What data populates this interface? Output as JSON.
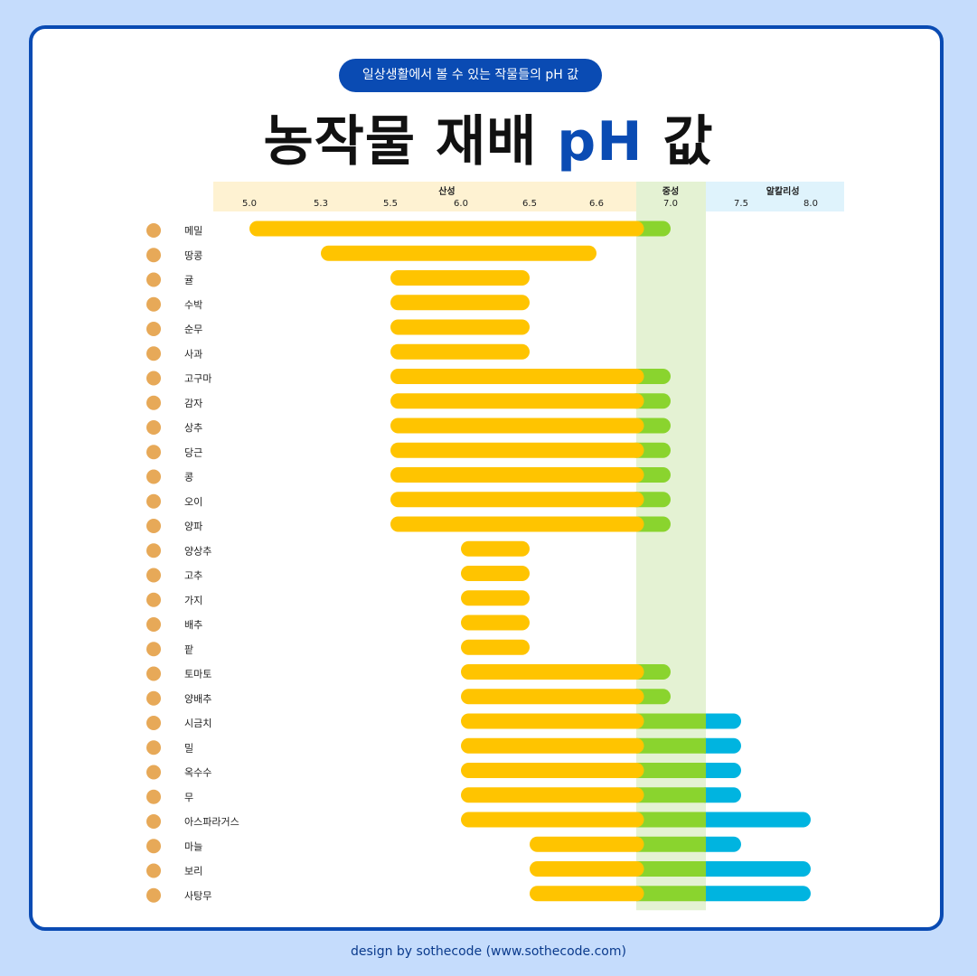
{
  "header": {
    "subtitle_pill": "일상생활에서 볼 수 있는 작물들의 pH 값",
    "title_main": "농작물 재배",
    "title_ph": "pH",
    "title_end": "값"
  },
  "footer": {
    "credit": "design by sothecode (www.sothecode.com)"
  },
  "colors": {
    "acid": "#ffc400",
    "neutral": "#8ad42e",
    "alkaline": "#00b4e0",
    "neutral_band": "#e4f2d3",
    "acid_band": "#fef2d2",
    "alkaline_band": "#dff3fc",
    "accent": "#0a4bb3"
  },
  "chart_data": {
    "type": "bar",
    "orientation": "horizontal-range",
    "zones": [
      {
        "name": "산성",
        "label_x": 5.9
      },
      {
        "name": "중성",
        "label_x": 7.0
      },
      {
        "name": "알칼리성",
        "label_x": 7.8
      }
    ],
    "ticks": [
      "5.0",
      "5.3",
      "5.5",
      "6.0",
      "6.5",
      "6.6",
      "7.0",
      "7.5",
      "8.0"
    ],
    "crops": [
      {
        "name": "메밀",
        "icon": "buckwheat-icon",
        "min": 5.0,
        "max": 7.0
      },
      {
        "name": "땅콩",
        "icon": "peanut-icon",
        "min": 5.3,
        "max": 6.6
      },
      {
        "name": "귤",
        "icon": "tangerine-icon",
        "min": 5.5,
        "max": 6.5
      },
      {
        "name": "수박",
        "icon": "watermelon-icon",
        "min": 5.5,
        "max": 6.5
      },
      {
        "name": "순무",
        "icon": "turnip-icon",
        "min": 5.5,
        "max": 6.5
      },
      {
        "name": "사과",
        "icon": "apple-icon",
        "min": 5.5,
        "max": 6.5
      },
      {
        "name": "고구마",
        "icon": "sweet-potato-icon",
        "min": 5.5,
        "max": 7.0
      },
      {
        "name": "감자",
        "icon": "potato-icon",
        "min": 5.5,
        "max": 7.0
      },
      {
        "name": "상추",
        "icon": "lettuce-icon",
        "min": 5.5,
        "max": 7.0
      },
      {
        "name": "당근",
        "icon": "carrot-icon",
        "min": 5.5,
        "max": 7.0
      },
      {
        "name": "콩",
        "icon": "bean-icon",
        "min": 5.5,
        "max": 7.0
      },
      {
        "name": "오이",
        "icon": "cucumber-icon",
        "min": 5.5,
        "max": 7.0
      },
      {
        "name": "양파",
        "icon": "onion-icon",
        "min": 5.5,
        "max": 7.0
      },
      {
        "name": "양상추",
        "icon": "iceberg-lettuce-icon",
        "min": 6.0,
        "max": 6.5
      },
      {
        "name": "고추",
        "icon": "chili-icon",
        "min": 6.0,
        "max": 6.5
      },
      {
        "name": "가지",
        "icon": "eggplant-icon",
        "min": 6.0,
        "max": 6.5
      },
      {
        "name": "배추",
        "icon": "napa-cabbage-icon",
        "min": 6.0,
        "max": 6.5
      },
      {
        "name": "팥",
        "icon": "red-bean-icon",
        "min": 6.0,
        "max": 6.5
      },
      {
        "name": "토마토",
        "icon": "tomato-icon",
        "min": 6.0,
        "max": 7.0
      },
      {
        "name": "양배추",
        "icon": "cabbage-icon",
        "min": 6.0,
        "max": 7.0
      },
      {
        "name": "시금치",
        "icon": "spinach-icon",
        "min": 6.0,
        "max": 7.5
      },
      {
        "name": "밀",
        "icon": "wheat-icon",
        "min": 6.0,
        "max": 7.5
      },
      {
        "name": "옥수수",
        "icon": "corn-icon",
        "min": 6.0,
        "max": 7.5
      },
      {
        "name": "무",
        "icon": "radish-icon",
        "min": 6.0,
        "max": 7.5
      },
      {
        "name": "아스파라거스",
        "icon": "asparagus-icon",
        "min": 6.0,
        "max": 8.0
      },
      {
        "name": "마늘",
        "icon": "garlic-icon",
        "min": 6.5,
        "max": 7.5
      },
      {
        "name": "보리",
        "icon": "barley-icon",
        "min": 6.5,
        "max": 8.0
      },
      {
        "name": "사탕무",
        "icon": "beet-icon",
        "min": 6.5,
        "max": 8.0
      }
    ]
  }
}
